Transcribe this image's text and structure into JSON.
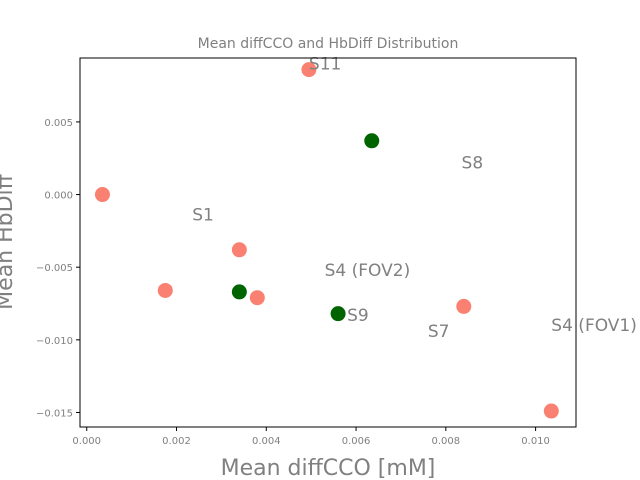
{
  "chart_data": {
    "type": "scatter",
    "title": "Mean diffCCO and HbDiff Distribution",
    "xlabel": "Mean diffCCO [mM]",
    "ylabel": "Mean HbDiff",
    "xlim": [
      -0.00015,
      0.0109
    ],
    "ylim": [
      -0.016,
      0.0094
    ],
    "xticks": [
      0.0,
      0.002,
      0.004,
      0.006,
      0.008,
      0.01
    ],
    "xtick_labels": [
      "0.000",
      "0.002",
      "0.004",
      "0.006",
      "0.008",
      "0.010"
    ],
    "yticks": [
      -0.015,
      -0.01,
      -0.005,
      0.0,
      0.005
    ],
    "ytick_labels": [
      "−0.015",
      "−0.010",
      "−0.005",
      "0.000",
      "0.005"
    ],
    "grid": false,
    "colors": {
      "salmon": "#fa8072",
      "green": "#006400",
      "text": "#808080"
    },
    "points": [
      {
        "x": 0.00035,
        "y": 0.0,
        "color": "salmon"
      },
      {
        "x": 0.00175,
        "y": -0.0066,
        "color": "salmon"
      },
      {
        "x": 0.0034,
        "y": -0.0038,
        "color": "salmon"
      },
      {
        "x": 0.0034,
        "y": -0.0067,
        "color": "green"
      },
      {
        "x": 0.0038,
        "y": -0.0071,
        "color": "salmon"
      },
      {
        "x": 0.00495,
        "y": 0.0086,
        "color": "salmon"
      },
      {
        "x": 0.0056,
        "y": -0.0082,
        "color": "green"
      },
      {
        "x": 0.00635,
        "y": 0.0037,
        "color": "green"
      },
      {
        "x": 0.0084,
        "y": -0.0077,
        "color": "salmon"
      },
      {
        "x": 0.01035,
        "y": -0.0149,
        "color": "salmon"
      }
    ],
    "annotations": [
      {
        "text": "S11",
        "x": 0.00495,
        "y": 0.0086
      },
      {
        "text": "S8",
        "x": 0.00835,
        "y": 0.0018
      },
      {
        "text": "S1",
        "x": 0.00235,
        "y": -0.0018
      },
      {
        "text": "S4 (FOV2)",
        "x": 0.0053,
        "y": -0.0056
      },
      {
        "text": "S9",
        "x": 0.0058,
        "y": -0.0087
      },
      {
        "text": "S7",
        "x": 0.0076,
        "y": -0.0098
      },
      {
        "text": "S4 (FOV1)",
        "x": 0.01035,
        "y": -0.0094
      }
    ]
  }
}
